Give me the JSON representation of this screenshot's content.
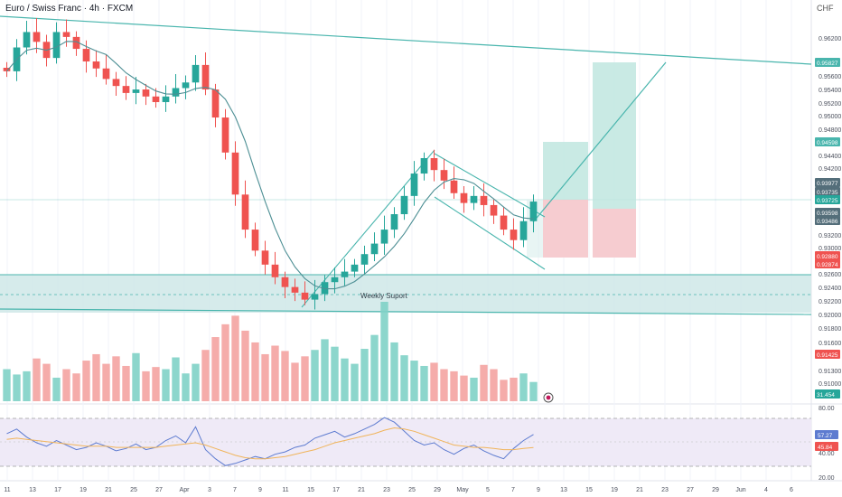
{
  "header": {
    "symbol": "Euro / Swiss Franc",
    "interval": "4h",
    "exchange": "FXCM",
    "currency": "CHF"
  },
  "annotations": {
    "support_label": "Weekly Suport"
  },
  "price_axis": {
    "ticks": [
      "0.96200",
      "0.95600",
      "0.95400",
      "0.95200",
      "0.95000",
      "0.94800",
      "0.94400",
      "0.94200",
      "0.93200",
      "0.93000",
      "0.92600",
      "0.92400",
      "0.92200",
      "0.92000",
      "0.91800",
      "0.91600",
      "0.91300",
      "0.91000"
    ],
    "badges": [
      {
        "label": "0.95827",
        "price": 0.95827,
        "kind": "target"
      },
      {
        "label": "0.94598",
        "price": 0.94598,
        "kind": "target"
      },
      {
        "label": "0.93977",
        "price": 0.93977,
        "kind": "level"
      },
      {
        "label": "0.93735",
        "price": 0.93735,
        "kind": "level"
      },
      {
        "label": "0.93725",
        "price": 0.93725,
        "kind": "last"
      },
      {
        "label": "0.93598",
        "price": 0.93598,
        "kind": "level"
      },
      {
        "label": "0.93486",
        "price": 0.93486,
        "kind": "level"
      },
      {
        "label": "0.92880",
        "price": 0.9288,
        "kind": "stop"
      },
      {
        "label": "0.92874",
        "price": 0.92874,
        "kind": "stop"
      },
      {
        "label": "0.91425",
        "price": 0.91425,
        "kind": "volume"
      },
      {
        "label": "31.454",
        "price": 0.9085,
        "kind": "volume-count"
      }
    ]
  },
  "rsi_axis": {
    "ticks": [
      "80.00",
      "40.00",
      "20.00"
    ],
    "badges": [
      "57.27",
      "45.84"
    ]
  },
  "time_axis": {
    "labels": [
      "11",
      "13",
      "17",
      "19",
      "21",
      "25",
      "27",
      "Apr",
      "3",
      "7",
      "9",
      "11",
      "15",
      "17",
      "21",
      "23",
      "25",
      "29",
      "May",
      "5",
      "7",
      "9",
      "13",
      "15",
      "19",
      "21",
      "23",
      "27",
      "29",
      "Jun",
      "4",
      "6"
    ]
  },
  "colors": {
    "bull": "#26a69a",
    "bear": "#ef5350",
    "bull_volume": "#7fd1c6",
    "bear_volume": "#f4a3a1",
    "ma": "#4d8f94",
    "trendline": "#49b5ad",
    "support_zone": "#cfe7e7",
    "target_zone": "#bfe6df",
    "stop_zone": "#f5c7cb",
    "rsi_line": "#5d7bd0",
    "rsi_ma": "#f0b45a",
    "rsi_band": "#efeaf7"
  },
  "chart_data": [
    {
      "type": "candlestick",
      "title": "Euro / Swiss Franc · 4h · FXCM",
      "ylim": [
        0.9085,
        0.965
      ],
      "series": [
        {
          "name": "price",
          "values": [
            0.9556,
            0.959,
            0.9612,
            0.9598,
            0.9575,
            0.9612,
            0.9605,
            0.9588,
            0.957,
            0.956,
            0.9545,
            0.9535,
            0.9525,
            0.953,
            0.952,
            0.9512,
            0.952,
            0.9532,
            0.954,
            0.9565,
            0.953,
            0.949,
            0.944,
            0.938,
            0.933,
            0.93,
            0.928,
            0.9262,
            0.9248,
            0.924,
            0.923,
            0.9238,
            0.9255,
            0.9262,
            0.927,
            0.928,
            0.9295,
            0.931,
            0.933,
            0.9352,
            0.9378,
            0.941,
            0.9432,
            0.9415,
            0.94,
            0.9382,
            0.9368,
            0.9378,
            0.9365,
            0.935,
            0.933,
            0.9315,
            0.9342,
            0.937
          ]
        }
      ]
    },
    {
      "type": "bar",
      "title": "Volume",
      "series": [
        {
          "name": "volume",
          "values": [
            30,
            25,
            28,
            40,
            35,
            22,
            30,
            26,
            38,
            44,
            35,
            42,
            33,
            45,
            28,
            32,
            30,
            41,
            26,
            35,
            48,
            60,
            72,
            80,
            66,
            55,
            44,
            52,
            47,
            36,
            42,
            48,
            58,
            51,
            40,
            35,
            49,
            62,
            93,
            55,
            43,
            38,
            33,
            36,
            30,
            28,
            24,
            22,
            34,
            30,
            20,
            22,
            26,
            18
          ]
        }
      ]
    },
    {
      "type": "line",
      "title": "RSI",
      "ylim": [
        20,
        80
      ],
      "series": [
        {
          "name": "rsi",
          "values": [
            58,
            62,
            55,
            50,
            47,
            52,
            48,
            44,
            46,
            50,
            47,
            43,
            45,
            49,
            44,
            46,
            52,
            56,
            50,
            64,
            44,
            36,
            30,
            32,
            35,
            38,
            36,
            40,
            42,
            46,
            48,
            54,
            57,
            60,
            55,
            58,
            62,
            66,
            72,
            68,
            60,
            52,
            48,
            50,
            44,
            40,
            45,
            48,
            43,
            39,
            36,
            45,
            52,
            57.27
          ]
        },
        {
          "name": "rsi-ma",
          "values": [
            53,
            54,
            53,
            52,
            51,
            50,
            49,
            48,
            47,
            47,
            47,
            46,
            46,
            46,
            46,
            46,
            47,
            48,
            49,
            50,
            48,
            45,
            42,
            39,
            37,
            36,
            36,
            37,
            38,
            40,
            42,
            44,
            47,
            50,
            52,
            54,
            56,
            58,
            61,
            63,
            62,
            60,
            57,
            54,
            51,
            48,
            47,
            46,
            46,
            45,
            44,
            44,
            45,
            45.84
          ]
        }
      ]
    }
  ]
}
